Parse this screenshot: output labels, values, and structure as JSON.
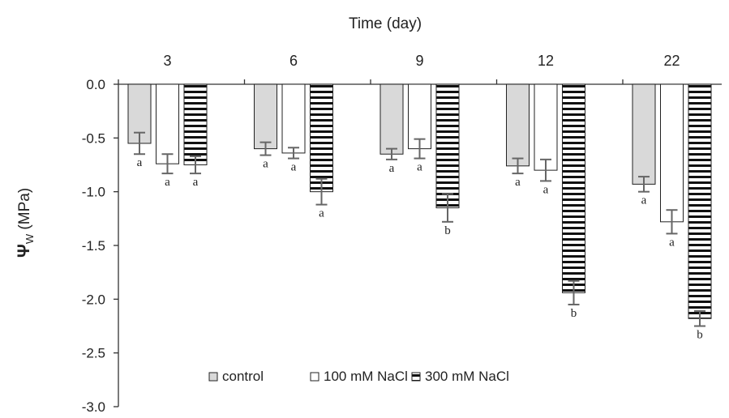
{
  "chart_data": {
    "type": "bar",
    "title": "",
    "xlabel": "Time (day)",
    "ylabel_main": "Ψ",
    "ylabel_sub": "W",
    "ylabel_unit": "(MPa)",
    "categories": [
      "3",
      "6",
      "9",
      "12",
      "22"
    ],
    "ylim": [
      -3.0,
      0.0
    ],
    "yticks": [
      0.0,
      -0.5,
      -1.0,
      -1.5,
      -2.0,
      -2.5,
      -3.0
    ],
    "ytick_labels": [
      "0.0",
      "-0.5",
      "-1.0",
      "-1.5",
      "-2.0",
      "-2.5",
      "-3.0"
    ],
    "grid": false,
    "legend_position": "bottom-center",
    "series": [
      {
        "name": "control",
        "pattern": "solid-gray",
        "fill": "#d9d9d9",
        "values": [
          -0.55,
          -0.6,
          -0.65,
          -0.76,
          -0.93
        ],
        "errors": [
          0.1,
          0.06,
          0.05,
          0.07,
          0.07
        ],
        "significance": [
          "a",
          "a",
          "a",
          "a",
          "a"
        ]
      },
      {
        "name": "100 mM NaCl",
        "pattern": "white",
        "fill": "#ffffff",
        "values": [
          -0.74,
          -0.64,
          -0.6,
          -0.8,
          -1.28
        ],
        "errors": [
          0.09,
          0.05,
          0.09,
          0.1,
          0.11
        ],
        "significance": [
          "a",
          "a",
          "a",
          "a",
          "a"
        ]
      },
      {
        "name": "300 mM NaCl",
        "pattern": "horizontal-stripes",
        "fill": "#ffffff",
        "values": [
          -0.75,
          -1.0,
          -1.15,
          -1.94,
          -2.18
        ],
        "errors": [
          0.08,
          0.12,
          0.13,
          0.11,
          0.07
        ],
        "significance": [
          "a",
          "a",
          "b",
          "b",
          "b"
        ]
      }
    ],
    "colors": {
      "axis": "#333333",
      "bar_stroke": "#222222",
      "error_bar": "#666666"
    }
  }
}
